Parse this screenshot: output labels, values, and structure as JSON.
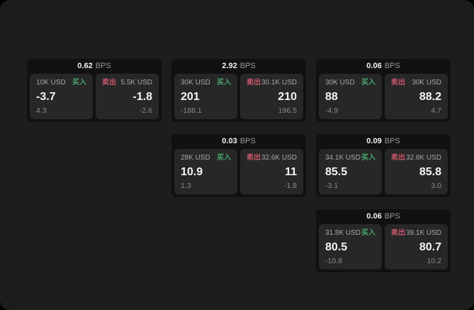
{
  "labels": {
    "bps_suffix": "BPS",
    "buy": "买入",
    "sell": "卖出"
  },
  "colors": {
    "page_bg": "#000000",
    "panel_bg": "#1d1d1d",
    "card_bg": "#111111",
    "tile_bg": "#272727",
    "buy_accent": "#47a56e",
    "sell_accent": "#c9566b"
  },
  "cards": [
    {
      "col": 1,
      "row": 1,
      "bps": "0.62",
      "buy": {
        "amount": "10K USD",
        "price": "-3.7",
        "delta": "4.3"
      },
      "sell": {
        "amount": "5.5K USD",
        "price": "-1.8",
        "delta": "-2.6"
      }
    },
    {
      "col": 2,
      "row": 1,
      "bps": "2.92",
      "buy": {
        "amount": "30K USD",
        "price": "201",
        "delta": "-188.1"
      },
      "sell": {
        "amount": "30.1K USD",
        "price": "210",
        "delta": "196.5"
      }
    },
    {
      "col": 3,
      "row": 1,
      "bps": "0.06",
      "buy": {
        "amount": "30K USD",
        "price": "88",
        "delta": "-4.9"
      },
      "sell": {
        "amount": "30K USD",
        "price": "88.2",
        "delta": "4.7"
      }
    },
    {
      "col": 2,
      "row": 2,
      "bps": "0.03",
      "buy": {
        "amount": "28K USD",
        "price": "10.9",
        "delta": "1.3"
      },
      "sell": {
        "amount": "32.6K USD",
        "price": "11",
        "delta": "-1.8"
      }
    },
    {
      "col": 3,
      "row": 2,
      "bps": "0.09",
      "buy": {
        "amount": "34.1K USD",
        "price": "85.5",
        "delta": "-3.1"
      },
      "sell": {
        "amount": "32.8K USD",
        "price": "85.8",
        "delta": "3.0"
      }
    },
    {
      "col": 3,
      "row": 3,
      "bps": "0.06",
      "buy": {
        "amount": "31.8K USD",
        "price": "80.5",
        "delta": "-10.8"
      },
      "sell": {
        "amount": "39.1K USD",
        "price": "80.7",
        "delta": "10.2"
      }
    }
  ]
}
